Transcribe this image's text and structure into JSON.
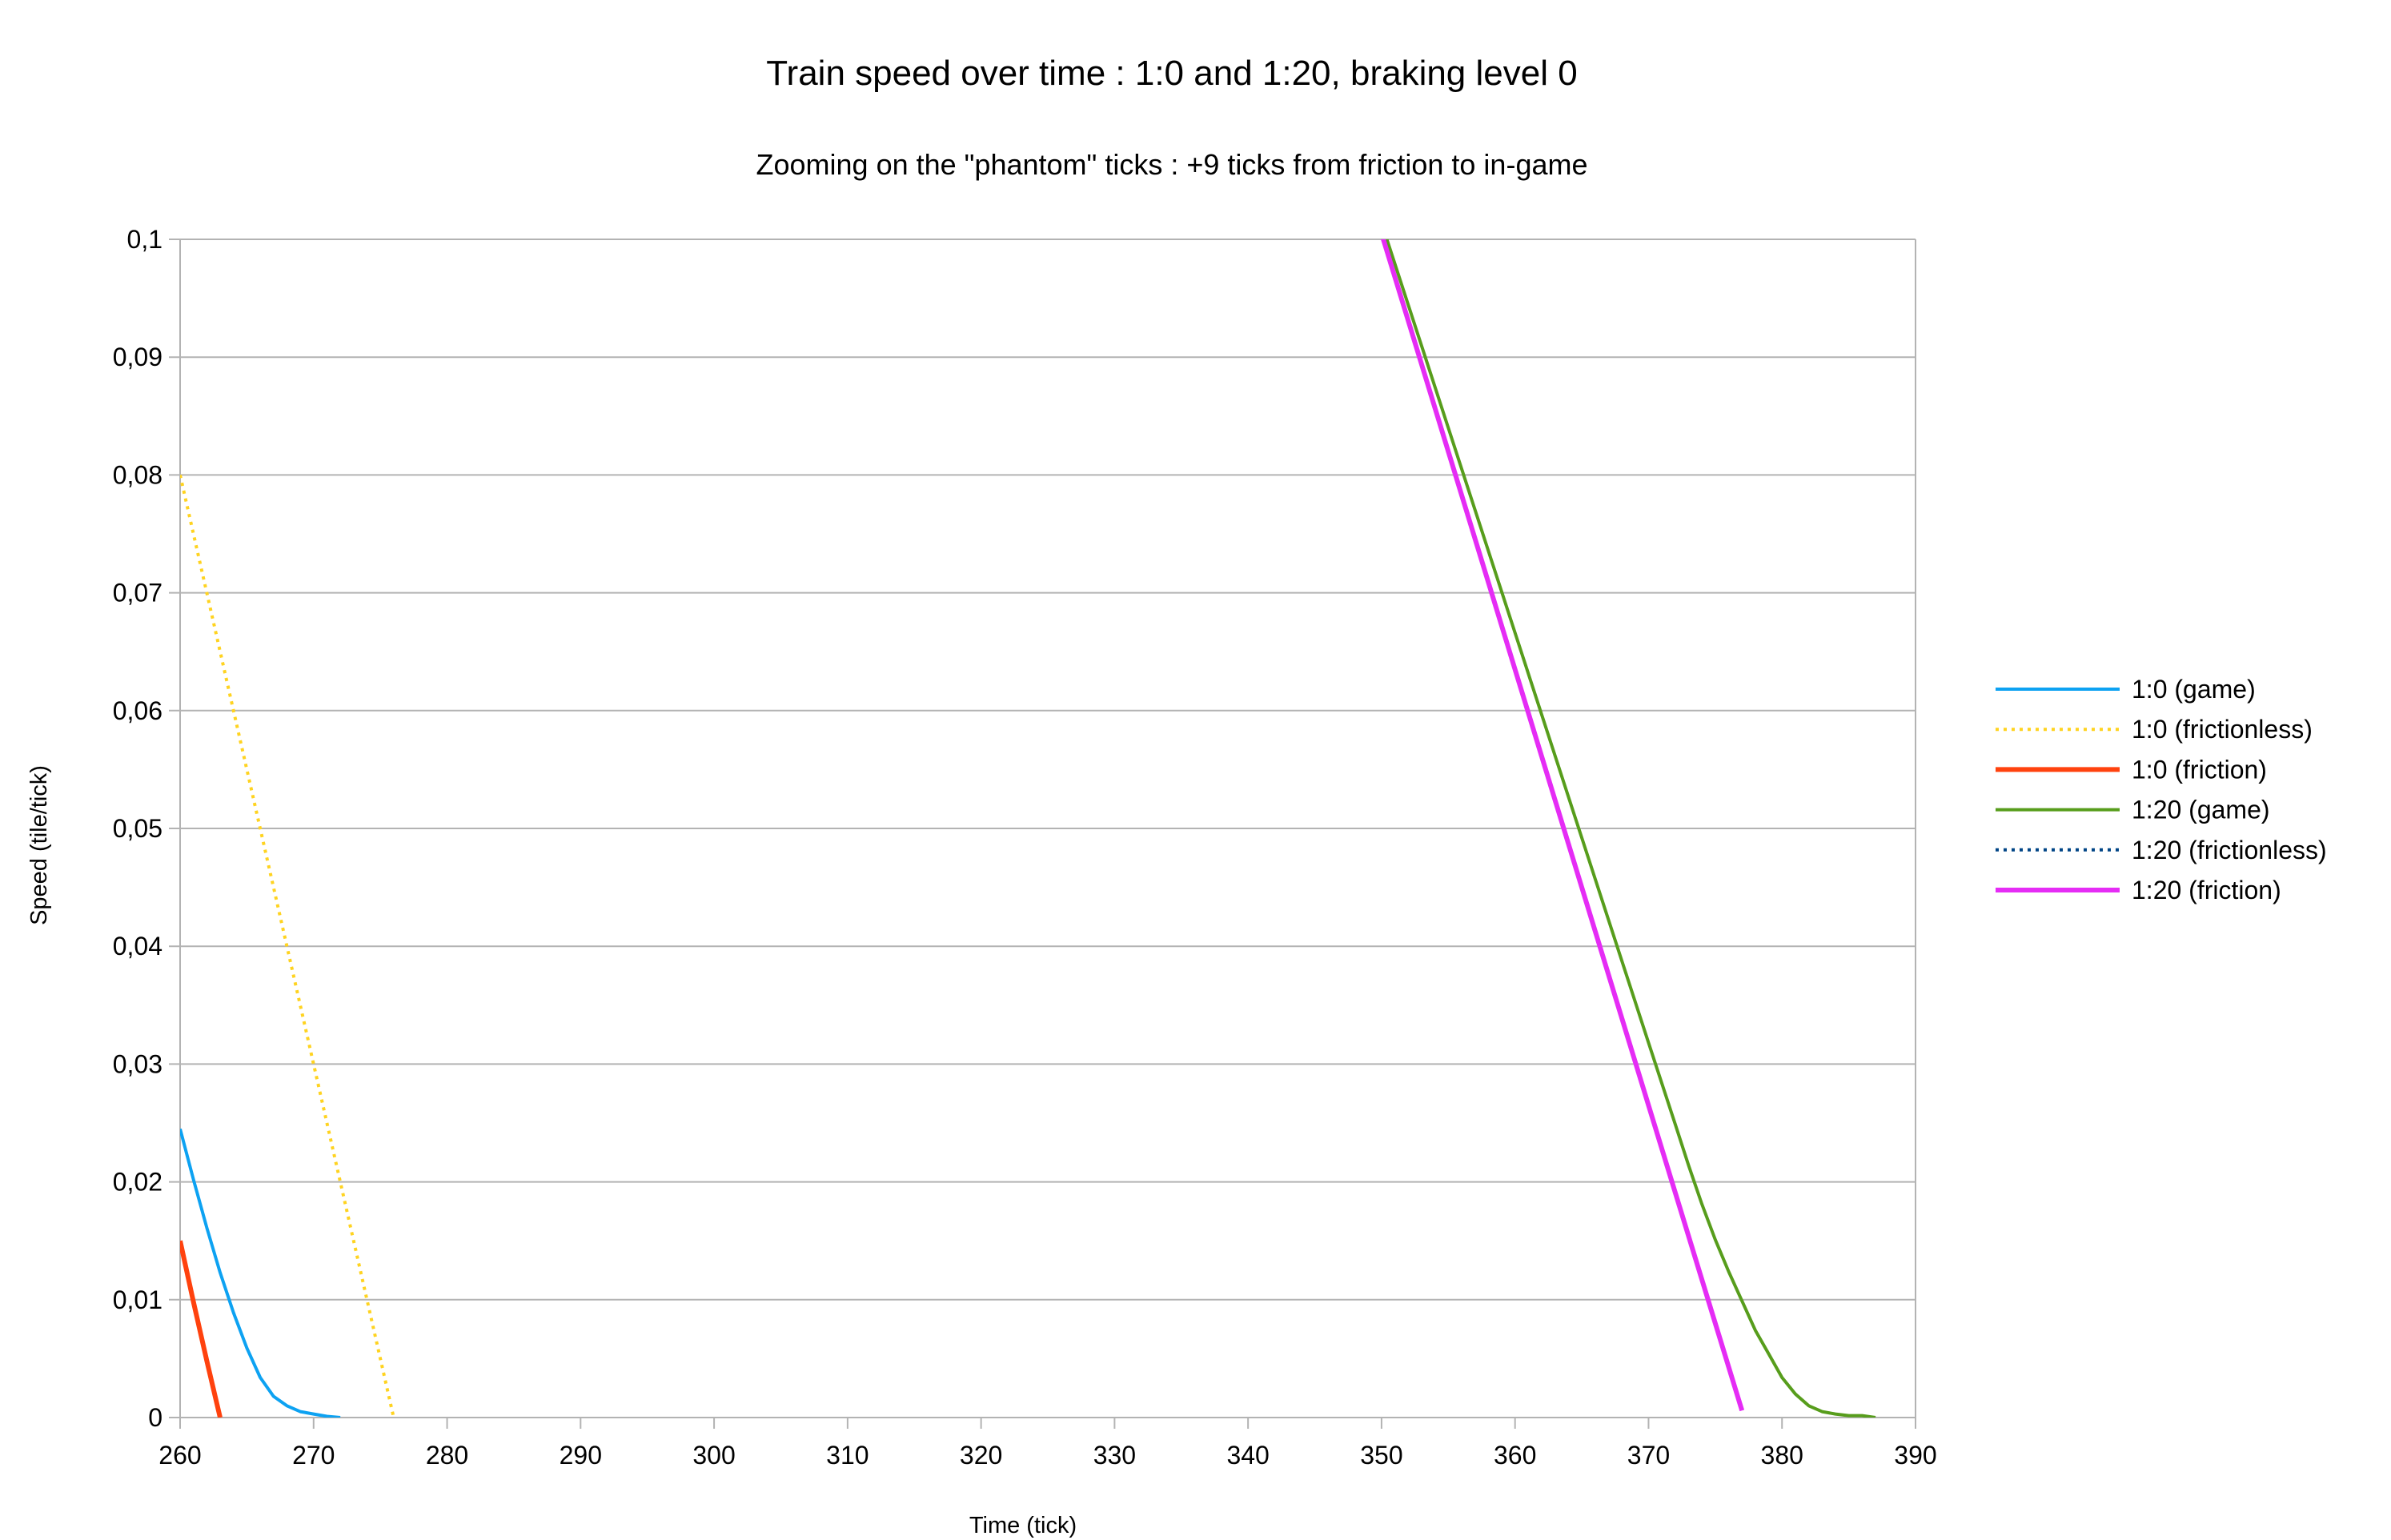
{
  "chart_data": {
    "type": "line",
    "title": "Train speed over time : 1:0 and 1:20, braking level 0",
    "subtitle": "Zooming on the \"phantom\" ticks : +9 ticks from friction to in-game",
    "xlabel": "Time (tick)",
    "ylabel": "Speed (tile/tick)",
    "xlim": [
      260,
      390
    ],
    "ylim": [
      0,
      0.1
    ],
    "xticks": [
      "260",
      "270",
      "280",
      "290",
      "300",
      "310",
      "320",
      "330",
      "340",
      "350",
      "360",
      "370",
      "380",
      "390"
    ],
    "yticks": [
      "0",
      "0,01",
      "0,02",
      "0,03",
      "0,04",
      "0,05",
      "0,06",
      "0,07",
      "0,08",
      "0,09",
      "0,1"
    ],
    "grid": true,
    "legend_position": "right",
    "series": [
      {
        "name": "1:0 (game)",
        "color": "#0da2f2",
        "style": "solid",
        "width": "normal",
        "x": [
          260,
          261,
          262,
          263,
          264,
          265,
          266,
          267,
          268,
          269,
          270,
          271,
          272
        ],
        "y": [
          0.0245,
          0.0202,
          0.0161,
          0.0123,
          0.0089,
          0.0059,
          0.0034,
          0.0018,
          0.001,
          0.0005,
          0.0003,
          0.0001,
          0
        ]
      },
      {
        "name": "1:0 (frictionless)",
        "color": "#ffd320",
        "style": "dotted",
        "width": "normal",
        "x": [
          260,
          276
        ],
        "y": [
          0.08,
          0
        ]
      },
      {
        "name": "1:0 (friction)",
        "color": "#ff420e",
        "style": "solid",
        "width": "thick",
        "x": [
          260,
          261,
          262,
          263
        ],
        "y": [
          0.015,
          0.0098,
          0.0048,
          0
        ]
      },
      {
        "name": "1:20 (game)",
        "color": "#579d1c",
        "style": "solid",
        "width": "normal",
        "x": [
          350,
          355,
          360,
          365,
          370,
          372,
          373,
          374,
          375,
          376,
          377,
          378,
          379,
          380,
          381,
          382,
          383,
          384,
          385,
          386,
          387
        ],
        "y": [
          0.1014,
          0.084,
          0.0666,
          0.0492,
          0.0318,
          0.0249,
          0.0214,
          0.0181,
          0.0151,
          0.0124,
          0.0099,
          0.0074,
          0.0054,
          0.0034,
          0.002,
          0.001,
          0.0005,
          0.0003,
          0.00016,
          0.00016,
          0
        ]
      },
      {
        "name": "1:20 (frictionless)",
        "color": "#004586",
        "style": "dotted",
        "width": "normal",
        "x": [
          349,
          377
        ],
        "y": [
          0.1042,
          0.0006
        ]
      },
      {
        "name": "1:20 (friction)",
        "color": "#e52cf5",
        "style": "solid",
        "width": "thick",
        "x": [
          349,
          377
        ],
        "y": [
          0.1042,
          0.0006
        ]
      }
    ]
  }
}
